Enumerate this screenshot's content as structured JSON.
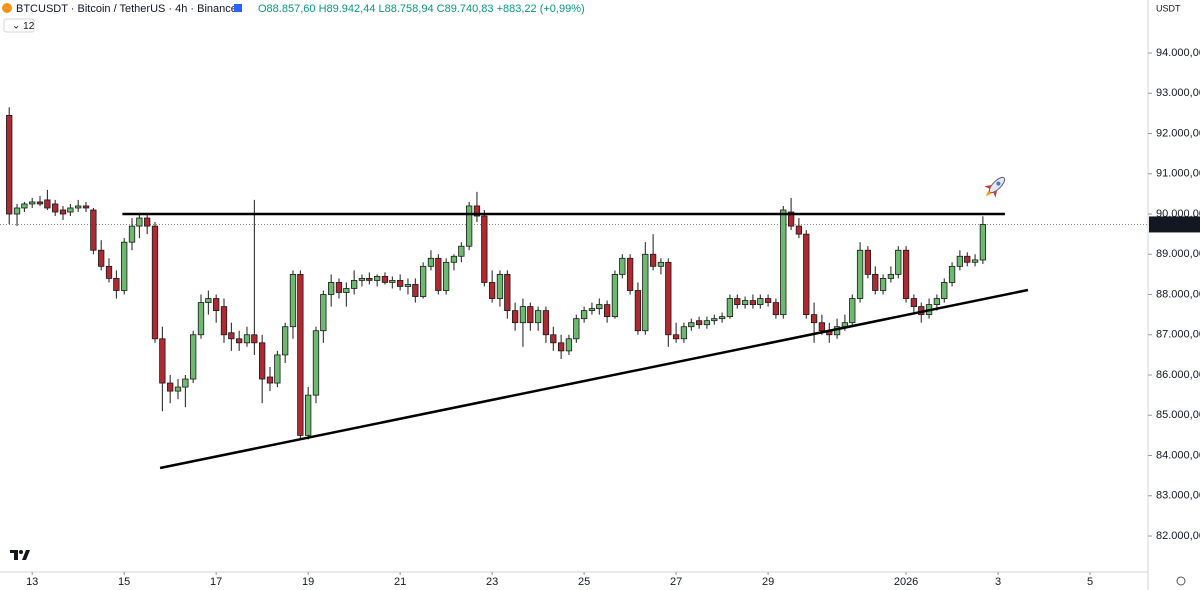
{
  "chart_data": {
    "type": "candlestick",
    "title": "BTCUSDT · Bitcoin / TetherUS · 4h · Binance",
    "ohlc_header": [
      "O88.857,60",
      "H89.942,44",
      "L88.758,94",
      "C89.740,83"
    ],
    "change_header": "+883,22 (+0,99%)",
    "indicator_badge": "12",
    "y_axis_label": "USDT",
    "colors": {
      "up": "#6cb96f",
      "down": "#ad2a33",
      "outline": "#1b1b1b",
      "trendline": "#000000"
    },
    "xlim": [
      -0.7,
      24.26
    ],
    "ylim": [
      81106,
      95317
    ],
    "xticks": [
      {
        "value": 0,
        "label": "13"
      },
      {
        "value": 2,
        "label": "15"
      },
      {
        "value": 4,
        "label": "17"
      },
      {
        "value": 6,
        "label": "19"
      },
      {
        "value": 8,
        "label": "21"
      },
      {
        "value": 10,
        "label": "23"
      },
      {
        "value": 12,
        "label": "25"
      },
      {
        "value": 14,
        "label": "27"
      },
      {
        "value": 16,
        "label": "29"
      },
      {
        "value": 19,
        "label": "2026"
      },
      {
        "value": 21,
        "label": "3"
      },
      {
        "value": 23,
        "label": "5"
      }
    ],
    "yticks": [
      {
        "value": 82000,
        "label": "82.000,00"
      },
      {
        "value": 83000,
        "label": "83.000,00"
      },
      {
        "value": 84000,
        "label": "84.000,00"
      },
      {
        "value": 85000,
        "label": "85.000,00"
      },
      {
        "value": 86000,
        "label": "86.000,00"
      },
      {
        "value": 87000,
        "label": "87.000,00"
      },
      {
        "value": 88000,
        "label": "88.000,00"
      },
      {
        "value": 89000,
        "label": "89.000,00"
      },
      {
        "value": 90000,
        "label": "90.000,00"
      },
      {
        "value": 91000,
        "label": "91.000,00"
      },
      {
        "value": 92000,
        "label": "92.000,00"
      },
      {
        "value": 93000,
        "label": "93.000,00"
      },
      {
        "value": 94000,
        "label": "94.000,00"
      }
    ],
    "last_price": {
      "value": 89740.83,
      "label": "89.740,83"
    },
    "trendlines": [
      {
        "x": [
          1.96,
          21.15
        ],
        "y": [
          90000,
          90000
        ]
      },
      {
        "x": [
          2.78,
          21.65
        ],
        "y": [
          83689,
          88112
        ]
      }
    ],
    "candles": [
      {
        "x": -0.5,
        "o": 92450,
        "h": 92650,
        "l": 89750,
        "c": 90000
      },
      {
        "x": -0.33,
        "o": 90000,
        "h": 90250,
        "l": 89700,
        "c": 90150
      },
      {
        "x": -0.17,
        "o": 90150,
        "h": 90300,
        "l": 90050,
        "c": 90250
      },
      {
        "x": 0,
        "o": 90250,
        "h": 90400,
        "l": 90150,
        "c": 90300
      },
      {
        "x": 0.17,
        "o": 90300,
        "h": 90450,
        "l": 90200,
        "c": 90250
      },
      {
        "x": 0.33,
        "o": 90350,
        "h": 90600,
        "l": 90100,
        "c": 90150
      },
      {
        "x": 0.5,
        "o": 90250,
        "h": 90350,
        "l": 89950,
        "c": 90050
      },
      {
        "x": 0.67,
        "o": 90100,
        "h": 90200,
        "l": 89850,
        "c": 90000
      },
      {
        "x": 0.83,
        "o": 90050,
        "h": 90250,
        "l": 89950,
        "c": 90150
      },
      {
        "x": 1,
        "o": 90150,
        "h": 90350,
        "l": 90050,
        "c": 90200
      },
      {
        "x": 1.17,
        "o": 90200,
        "h": 90300,
        "l": 90050,
        "c": 90150
      },
      {
        "x": 1.33,
        "o": 90100,
        "h": 90150,
        "l": 89000,
        "c": 89100
      },
      {
        "x": 1.5,
        "o": 89100,
        "h": 89350,
        "l": 88600,
        "c": 88700
      },
      {
        "x": 1.67,
        "o": 88700,
        "h": 88900,
        "l": 88300,
        "c": 88400
      },
      {
        "x": 1.83,
        "o": 88400,
        "h": 88600,
        "l": 87900,
        "c": 88100
      },
      {
        "x": 2,
        "o": 88100,
        "h": 89400,
        "l": 88000,
        "c": 89300
      },
      {
        "x": 2.17,
        "o": 89300,
        "h": 89900,
        "l": 89100,
        "c": 89700
      },
      {
        "x": 2.33,
        "o": 89700,
        "h": 90000,
        "l": 89400,
        "c": 89900
      },
      {
        "x": 2.5,
        "o": 89900,
        "h": 90000,
        "l": 89500,
        "c": 89700
      },
      {
        "x": 2.67,
        "o": 89700,
        "h": 89800,
        "l": 86800,
        "c": 86900
      },
      {
        "x": 2.83,
        "o": 86900,
        "h": 87200,
        "l": 85100,
        "c": 85800
      },
      {
        "x": 3,
        "o": 85800,
        "h": 86000,
        "l": 85300,
        "c": 85600
      },
      {
        "x": 3.17,
        "o": 85600,
        "h": 85900,
        "l": 85400,
        "c": 85700
      },
      {
        "x": 3.33,
        "o": 85700,
        "h": 86000,
        "l": 85200,
        "c": 85900
      },
      {
        "x": 3.5,
        "o": 85900,
        "h": 87100,
        "l": 85800,
        "c": 87000
      },
      {
        "x": 3.67,
        "o": 87000,
        "h": 88000,
        "l": 86900,
        "c": 87800
      },
      {
        "x": 3.83,
        "o": 87800,
        "h": 88100,
        "l": 87500,
        "c": 87900
      },
      {
        "x": 4,
        "o": 87900,
        "h": 88000,
        "l": 87300,
        "c": 87600
      },
      {
        "x": 4.17,
        "o": 87700,
        "h": 87900,
        "l": 86800,
        "c": 87000
      },
      {
        "x": 4.33,
        "o": 87050,
        "h": 87300,
        "l": 86600,
        "c": 86900
      },
      {
        "x": 4.5,
        "o": 86900,
        "h": 87100,
        "l": 86600,
        "c": 86800
      },
      {
        "x": 4.67,
        "o": 86800,
        "h": 87200,
        "l": 86700,
        "c": 87000
      },
      {
        "x": 4.83,
        "o": 87000,
        "h": 90350,
        "l": 86500,
        "c": 86800
      },
      {
        "x": 5,
        "o": 86800,
        "h": 87000,
        "l": 85300,
        "c": 85900
      },
      {
        "x": 5.17,
        "o": 85950,
        "h": 86200,
        "l": 85600,
        "c": 85800
      },
      {
        "x": 5.33,
        "o": 85800,
        "h": 86600,
        "l": 85700,
        "c": 86500
      },
      {
        "x": 5.5,
        "o": 86500,
        "h": 87300,
        "l": 86300,
        "c": 87200
      },
      {
        "x": 5.67,
        "o": 87200,
        "h": 88600,
        "l": 86900,
        "c": 88500
      },
      {
        "x": 5.83,
        "o": 88500,
        "h": 88600,
        "l": 84400,
        "c": 84500
      },
      {
        "x": 6,
        "o": 84500,
        "h": 85700,
        "l": 84400,
        "c": 85500
      },
      {
        "x": 6.17,
        "o": 85500,
        "h": 87200,
        "l": 85300,
        "c": 87100
      },
      {
        "x": 6.33,
        "o": 87100,
        "h": 88100,
        "l": 86800,
        "c": 88000
      },
      {
        "x": 6.5,
        "o": 88000,
        "h": 88500,
        "l": 87700,
        "c": 88300
      },
      {
        "x": 6.67,
        "o": 88300,
        "h": 88400,
        "l": 87900,
        "c": 88050
      },
      {
        "x": 6.83,
        "o": 88050,
        "h": 88300,
        "l": 87700,
        "c": 88150
      },
      {
        "x": 7,
        "o": 88150,
        "h": 88600,
        "l": 88000,
        "c": 88350
      },
      {
        "x": 7.17,
        "o": 88350,
        "h": 88500,
        "l": 88200,
        "c": 88400
      },
      {
        "x": 7.33,
        "o": 88400,
        "h": 88550,
        "l": 88250,
        "c": 88350
      },
      {
        "x": 7.5,
        "o": 88350,
        "h": 88500,
        "l": 88200,
        "c": 88450
      },
      {
        "x": 7.67,
        "o": 88450,
        "h": 88550,
        "l": 88250,
        "c": 88300
      },
      {
        "x": 7.83,
        "o": 88300,
        "h": 88450,
        "l": 88150,
        "c": 88350
      },
      {
        "x": 8,
        "o": 88350,
        "h": 88500,
        "l": 88100,
        "c": 88200
      },
      {
        "x": 8.17,
        "o": 88200,
        "h": 88400,
        "l": 88000,
        "c": 88250
      },
      {
        "x": 8.33,
        "o": 88250,
        "h": 88400,
        "l": 87800,
        "c": 87950
      },
      {
        "x": 8.5,
        "o": 87950,
        "h": 88800,
        "l": 87900,
        "c": 88700
      },
      {
        "x": 8.67,
        "o": 88700,
        "h": 89100,
        "l": 88600,
        "c": 88900
      },
      {
        "x": 8.83,
        "o": 88900,
        "h": 89000,
        "l": 88000,
        "c": 88100
      },
      {
        "x": 9,
        "o": 88100,
        "h": 88900,
        "l": 88000,
        "c": 88800
      },
      {
        "x": 9.17,
        "o": 88800,
        "h": 89000,
        "l": 88600,
        "c": 88950
      },
      {
        "x": 9.33,
        "o": 88950,
        "h": 89300,
        "l": 88800,
        "c": 89200
      },
      {
        "x": 9.5,
        "o": 89200,
        "h": 90300,
        "l": 89100,
        "c": 90200
      },
      {
        "x": 9.67,
        "o": 90200,
        "h": 90550,
        "l": 89800,
        "c": 89950
      },
      {
        "x": 9.83,
        "o": 89950,
        "h": 90100,
        "l": 88200,
        "c": 88300
      },
      {
        "x": 10,
        "o": 88300,
        "h": 88600,
        "l": 87800,
        "c": 87900
      },
      {
        "x": 10.17,
        "o": 87900,
        "h": 88600,
        "l": 87700,
        "c": 88500
      },
      {
        "x": 10.33,
        "o": 88500,
        "h": 88600,
        "l": 87400,
        "c": 87600
      },
      {
        "x": 10.5,
        "o": 87600,
        "h": 87800,
        "l": 87100,
        "c": 87300
      },
      {
        "x": 10.67,
        "o": 87300,
        "h": 87900,
        "l": 86700,
        "c": 87700
      },
      {
        "x": 10.83,
        "o": 87700,
        "h": 87800,
        "l": 87100,
        "c": 87300
      },
      {
        "x": 11,
        "o": 87300,
        "h": 87700,
        "l": 87100,
        "c": 87600
      },
      {
        "x": 11.17,
        "o": 87600,
        "h": 87700,
        "l": 86800,
        "c": 87000
      },
      {
        "x": 11.33,
        "o": 87000,
        "h": 87200,
        "l": 86600,
        "c": 86800
      },
      {
        "x": 11.5,
        "o": 86800,
        "h": 87000,
        "l": 86400,
        "c": 86600
      },
      {
        "x": 11.67,
        "o": 86600,
        "h": 87000,
        "l": 86500,
        "c": 86900
      },
      {
        "x": 11.83,
        "o": 86900,
        "h": 87500,
        "l": 86800,
        "c": 87400
      },
      {
        "x": 12,
        "o": 87400,
        "h": 87700,
        "l": 87300,
        "c": 87600
      },
      {
        "x": 12.17,
        "o": 87600,
        "h": 87800,
        "l": 87500,
        "c": 87650
      },
      {
        "x": 12.33,
        "o": 87650,
        "h": 87900,
        "l": 87500,
        "c": 87750
      },
      {
        "x": 12.5,
        "o": 87750,
        "h": 87850,
        "l": 87300,
        "c": 87450
      },
      {
        "x": 12.67,
        "o": 87450,
        "h": 88600,
        "l": 87400,
        "c": 88500
      },
      {
        "x": 12.83,
        "o": 88500,
        "h": 89000,
        "l": 88400,
        "c": 88900
      },
      {
        "x": 13,
        "o": 88900,
        "h": 89000,
        "l": 88000,
        "c": 88100
      },
      {
        "x": 13.17,
        "o": 88100,
        "h": 88300,
        "l": 87000,
        "c": 87100
      },
      {
        "x": 13.33,
        "o": 87100,
        "h": 89300,
        "l": 87000,
        "c": 89000
      },
      {
        "x": 13.5,
        "o": 89000,
        "h": 89500,
        "l": 88600,
        "c": 88700
      },
      {
        "x": 13.67,
        "o": 88700,
        "h": 88900,
        "l": 88500,
        "c": 88800
      },
      {
        "x": 13.83,
        "o": 88800,
        "h": 88900,
        "l": 86700,
        "c": 87000
      },
      {
        "x": 14,
        "o": 87000,
        "h": 87300,
        "l": 86800,
        "c": 86900
      },
      {
        "x": 14.17,
        "o": 86900,
        "h": 87300,
        "l": 86800,
        "c": 87200
      },
      {
        "x": 14.33,
        "o": 87200,
        "h": 87400,
        "l": 87100,
        "c": 87300
      },
      {
        "x": 14.5,
        "o": 87350,
        "h": 87450,
        "l": 87150,
        "c": 87250
      },
      {
        "x": 14.67,
        "o": 87250,
        "h": 87450,
        "l": 87150,
        "c": 87350
      },
      {
        "x": 14.83,
        "o": 87350,
        "h": 87500,
        "l": 87250,
        "c": 87400
      },
      {
        "x": 15,
        "o": 87400,
        "h": 87550,
        "l": 87300,
        "c": 87450
      },
      {
        "x": 15.17,
        "o": 87450,
        "h": 88000,
        "l": 87400,
        "c": 87900
      },
      {
        "x": 15.33,
        "o": 87900,
        "h": 88000,
        "l": 87650,
        "c": 87750
      },
      {
        "x": 15.5,
        "o": 87750,
        "h": 87950,
        "l": 87650,
        "c": 87850
      },
      {
        "x": 15.67,
        "o": 87850,
        "h": 88000,
        "l": 87650,
        "c": 87750
      },
      {
        "x": 15.83,
        "o": 87750,
        "h": 88000,
        "l": 87650,
        "c": 87900
      },
      {
        "x": 16,
        "o": 87900,
        "h": 88000,
        "l": 87700,
        "c": 87800
      },
      {
        "x": 16.17,
        "o": 87800,
        "h": 87900,
        "l": 87400,
        "c": 87500
      },
      {
        "x": 16.33,
        "o": 87500,
        "h": 90200,
        "l": 87400,
        "c": 90100
      },
      {
        "x": 16.5,
        "o": 90050,
        "h": 90400,
        "l": 89600,
        "c": 89700
      },
      {
        "x": 16.67,
        "o": 89700,
        "h": 89900,
        "l": 89400,
        "c": 89500
      },
      {
        "x": 16.83,
        "o": 89500,
        "h": 89600,
        "l": 87400,
        "c": 87500
      },
      {
        "x": 17,
        "o": 87500,
        "h": 87800,
        "l": 86800,
        "c": 87300
      },
      {
        "x": 17.17,
        "o": 87300,
        "h": 87500,
        "l": 87000,
        "c": 87100
      },
      {
        "x": 17.33,
        "o": 87100,
        "h": 87300,
        "l": 86800,
        "c": 87000
      },
      {
        "x": 17.5,
        "o": 87000,
        "h": 87400,
        "l": 86900,
        "c": 87200
      },
      {
        "x": 17.67,
        "o": 87200,
        "h": 87500,
        "l": 87100,
        "c": 87300
      },
      {
        "x": 17.83,
        "o": 87300,
        "h": 88000,
        "l": 87200,
        "c": 87900
      },
      {
        "x": 18,
        "o": 87900,
        "h": 89300,
        "l": 87800,
        "c": 89100
      },
      {
        "x": 18.17,
        "o": 89100,
        "h": 89200,
        "l": 88400,
        "c": 88500
      },
      {
        "x": 18.33,
        "o": 88500,
        "h": 88700,
        "l": 88000,
        "c": 88100
      },
      {
        "x": 18.5,
        "o": 88100,
        "h": 88500,
        "l": 88000,
        "c": 88400
      },
      {
        "x": 18.67,
        "o": 88400,
        "h": 88700,
        "l": 88300,
        "c": 88500
      },
      {
        "x": 18.83,
        "o": 88500,
        "h": 89200,
        "l": 88400,
        "c": 89100
      },
      {
        "x": 19,
        "o": 89100,
        "h": 89200,
        "l": 87800,
        "c": 87900
      },
      {
        "x": 19.17,
        "o": 87900,
        "h": 88000,
        "l": 87500,
        "c": 87700
      },
      {
        "x": 19.33,
        "o": 87700,
        "h": 87800,
        "l": 87300,
        "c": 87500
      },
      {
        "x": 19.5,
        "o": 87500,
        "h": 87900,
        "l": 87400,
        "c": 87750
      },
      {
        "x": 19.67,
        "o": 87750,
        "h": 88000,
        "l": 87600,
        "c": 87900
      },
      {
        "x": 19.83,
        "o": 87900,
        "h": 88400,
        "l": 87800,
        "c": 88300
      },
      {
        "x": 20,
        "o": 88300,
        "h": 88800,
        "l": 88200,
        "c": 88700
      },
      {
        "x": 20.17,
        "o": 88700,
        "h": 89100,
        "l": 88600,
        "c": 88950
      },
      {
        "x": 20.33,
        "o": 88950,
        "h": 89050,
        "l": 88700,
        "c": 88800
      },
      {
        "x": 20.5,
        "o": 88800,
        "h": 89000,
        "l": 88700,
        "c": 88860
      },
      {
        "x": 20.67,
        "o": 88857.6,
        "h": 89942.44,
        "l": 88758.94,
        "c": 89740.83
      }
    ]
  }
}
